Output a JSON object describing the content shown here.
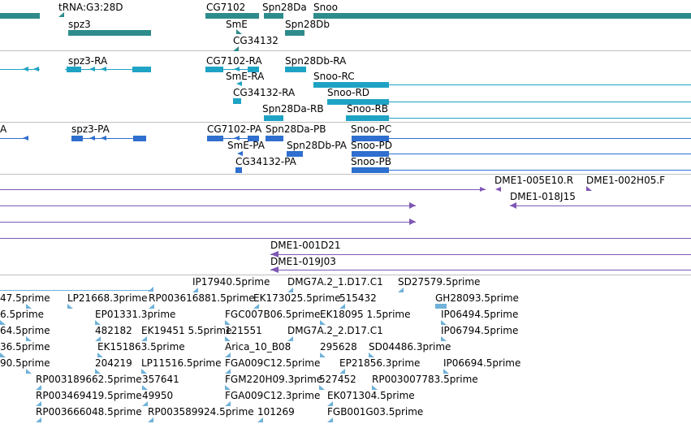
{
  "colors": {
    "gene": "#2e8b8b",
    "rna": "#1fa3c4",
    "protein": "#2e6fcf",
    "clone": "#7e57b5",
    "est": "#6fb2da",
    "separator": "#bfbfbf"
  },
  "tracks": {
    "genes": {
      "labels": [
        "tRNA:G3:28D",
        "CG7102",
        "Spn28Da",
        "Snoo",
        "spz3",
        "SmE",
        "Spn28Db",
        "CG34132"
      ]
    },
    "transcripts": {
      "labels": [
        "spz3-RA",
        "CG7102-RA",
        "Spn28Db-RA",
        "SmE-RA",
        "Snoo-RC",
        "CG34132-RA",
        "Snoo-RD",
        "Spn28Da-RB",
        "Snoo-RB"
      ]
    },
    "proteins": {
      "labels": [
        "A",
        "spz3-PA",
        "CG7102-PA",
        "Spn28Da-PB",
        "Snoo-PC",
        "SmE-PA",
        "Spn28Db-PA",
        "Snoo-PD",
        "CG34132-PA",
        "Snoo-PB"
      ]
    },
    "clones": {
      "labels": [
        "DME1-005E10.R",
        "DME1-002H05.F",
        "DME1-018J15",
        "DME1-001D21",
        "DME1-019J03"
      ]
    },
    "ests": {
      "labels": [
        "IP17940.5prime",
        "DMG7A.2_1.D17.C1",
        "SD27579.5prime",
        "47.5prime",
        "LP21668.3prime",
        "RP003616881.5prime",
        "EK173025.5prime",
        "515432",
        "GH28093.5prime",
        "6.5prime",
        "EP01331.3prime",
        "FGC007B06.5prime",
        "EK18095 1.5prime",
        "IP06494.5prime",
        "64.5prime",
        "482182",
        "EK19451 5.5prime",
        "121551",
        "DMG7A.2_2.D17.C1",
        "IP06794.5prime",
        "36.5prime",
        "EK151863.5prime",
        "Arica_10_B08",
        "295628",
        "SD04486.3prime",
        "90.5prime",
        "204219",
        "LP11516.5prime",
        "FGA009C12.5prime",
        "EP21856.3prime",
        "IP06694.5prime",
        "RP003189662.5prime",
        "357641",
        "FGM220H09.3prime",
        "527452",
        "RP003007783.5prime",
        "RP003469419.5prime",
        "49950",
        "FGA009C12.3prime",
        "EK071304.5prime",
        "RP003666048.5prime",
        "RP003589924.5prime",
        "101269",
        "FGB001G03.5prime"
      ]
    }
  }
}
